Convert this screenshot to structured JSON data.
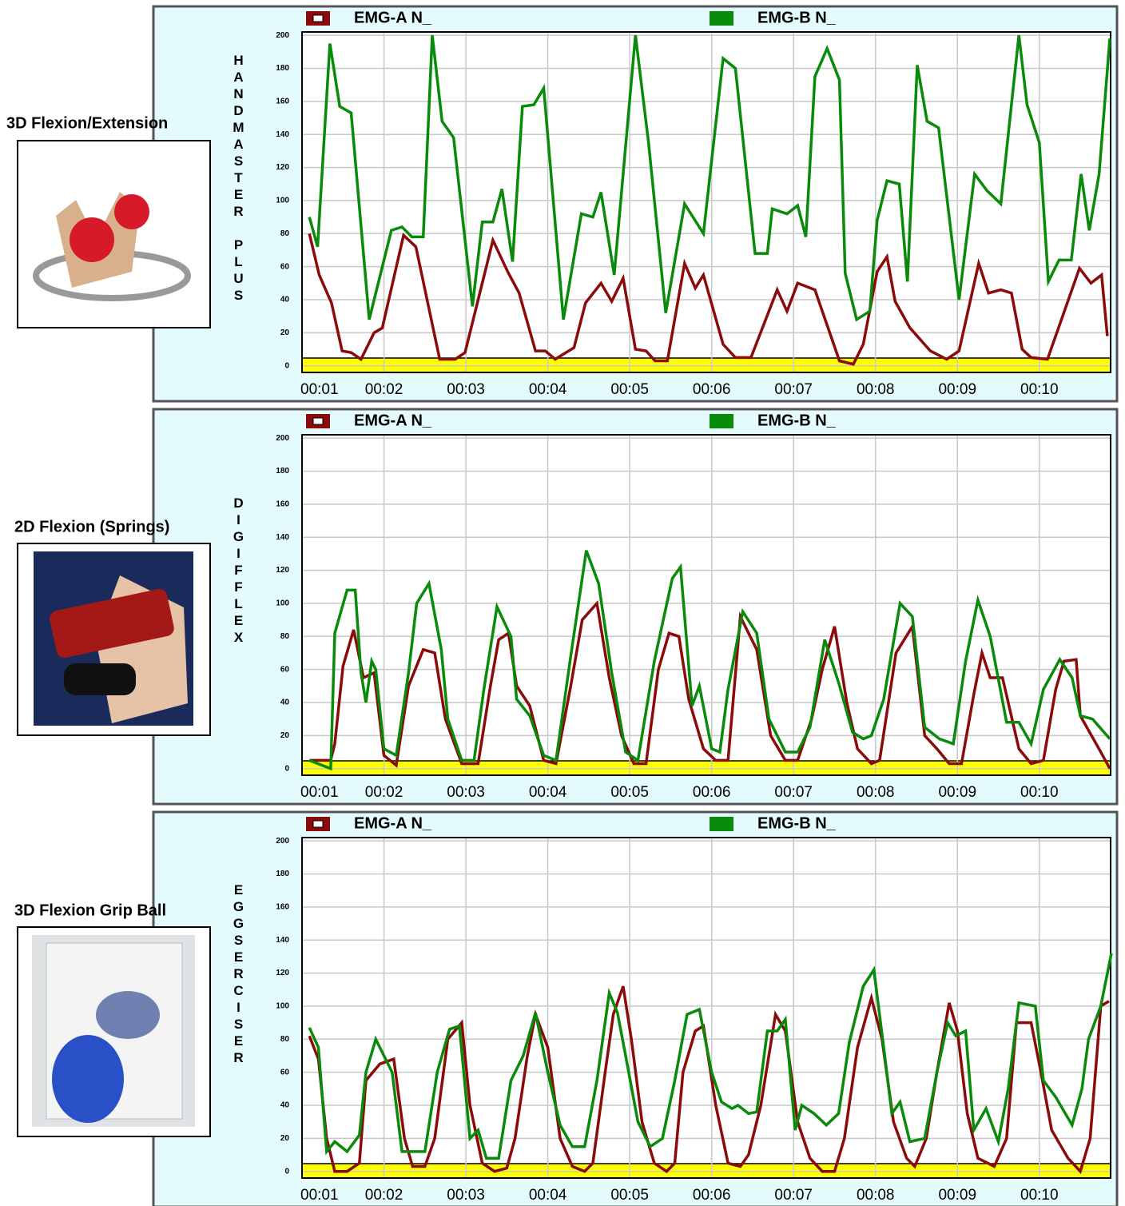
{
  "panels": [
    {
      "caption": "3D Flexion/Extension"
    },
    {
      "caption": "2D Flexion (Springs)"
    },
    {
      "caption": "3D Flexion Grip Ball"
    }
  ],
  "chart_data": [
    {
      "type": "line",
      "ylabel": "HANDMASTER PLUS",
      "xlim": [
        1,
        10.87
      ],
      "ylim": [
        -4,
        202
      ],
      "xticks": [
        {
          "value": 1,
          "label": "00:01"
        },
        {
          "value": 2,
          "label": "00:02"
        },
        {
          "value": 3,
          "label": "00:03"
        },
        {
          "value": 4,
          "label": "00:04"
        },
        {
          "value": 5,
          "label": "00:05"
        },
        {
          "value": 6,
          "label": "00:06"
        },
        {
          "value": 7,
          "label": "00:07"
        },
        {
          "value": 8,
          "label": "00:08"
        },
        {
          "value": 9,
          "label": "00:09"
        },
        {
          "value": 10,
          "label": "00:10"
        }
      ],
      "yticks": [
        0,
        20,
        40,
        60,
        80,
        100,
        120,
        140,
        160,
        180,
        200
      ],
      "grid": true,
      "series": [
        {
          "name": "EMG-A N_",
          "color": "#8b0a0a",
          "x": [
            1.09,
            1.21,
            1.36,
            1.49,
            1.6,
            1.72,
            1.88,
            1.98,
            2.24,
            2.39,
            2.68,
            2.87,
            2.99,
            3.33,
            3.51,
            3.65,
            3.85,
            3.97,
            4.09,
            4.32,
            4.46,
            4.65,
            4.78,
            4.92,
            5.07,
            5.2,
            5.31,
            5.46,
            5.67,
            5.8,
            5.9,
            6.14,
            6.29,
            6.48,
            6.8,
            6.92,
            7.05,
            7.26,
            7.56,
            7.73,
            7.85,
            8.02,
            8.14,
            8.24,
            8.42,
            8.67,
            8.87,
            9.02,
            9.26,
            9.38,
            9.53,
            9.66,
            9.79,
            9.9,
            10.1,
            10.49,
            10.63,
            10.76,
            10.83
          ],
          "values": [
            80,
            55,
            38,
            9,
            8,
            4,
            20,
            23,
            79,
            72,
            4,
            4,
            8,
            76,
            57,
            44,
            9,
            9,
            4,
            11,
            38,
            50,
            39,
            53,
            10,
            9,
            3,
            3,
            62,
            47,
            55,
            13,
            5,
            5,
            46,
            33,
            50,
            46,
            3,
            1,
            13,
            57,
            66,
            39,
            23,
            9,
            4,
            9,
            62,
            44,
            46,
            44,
            10,
            5,
            4,
            59,
            50,
            55,
            18
          ]
        },
        {
          "name": "EMG-B N_",
          "color": "#0a8a0a",
          "x": [
            1.09,
            1.19,
            1.34,
            1.46,
            1.6,
            1.82,
            2.09,
            2.22,
            2.34,
            2.48,
            2.59,
            2.71,
            2.85,
            3.08,
            3.2,
            3.33,
            3.44,
            3.57,
            3.69,
            3.83,
            3.95,
            4.19,
            4.41,
            4.55,
            4.65,
            4.81,
            5.07,
            5.23,
            5.44,
            5.67,
            5.9,
            6.14,
            6.29,
            6.53,
            6.68,
            6.74,
            6.92,
            7.05,
            7.15,
            7.26,
            7.41,
            7.56,
            7.63,
            7.77,
            7.93,
            8.02,
            8.14,
            8.29,
            8.39,
            8.51,
            8.63,
            8.77,
            9.02,
            9.21,
            9.36,
            9.53,
            9.75,
            9.85,
            10,
            10.11,
            10.24,
            10.39,
            10.51,
            10.61,
            10.73,
            10.86
          ],
          "values": [
            90,
            72,
            195,
            157,
            153,
            28,
            82,
            84,
            78,
            78,
            200,
            148,
            138,
            36,
            87,
            87,
            107,
            63,
            157,
            158,
            168,
            28,
            92,
            90,
            105,
            55,
            200,
            135,
            32,
            98,
            80,
            186,
            180,
            68,
            68,
            95,
            92,
            97,
            78,
            175,
            192,
            173,
            56,
            28,
            33,
            88,
            112,
            110,
            51,
            182,
            148,
            144,
            40,
            116,
            106,
            98,
            200,
            158,
            135,
            51,
            64,
            64,
            116,
            82,
            116,
            198
          ]
        }
      ]
    },
    {
      "type": "line",
      "ylabel": "DIGIFFLEX",
      "xlim": [
        1,
        10.87
      ],
      "ylim": [
        -4,
        202
      ],
      "xticks": [
        {
          "value": 1,
          "label": "00:01"
        },
        {
          "value": 2,
          "label": "00:02"
        },
        {
          "value": 3,
          "label": "00:03"
        },
        {
          "value": 4,
          "label": "00:04"
        },
        {
          "value": 5,
          "label": "00:05"
        },
        {
          "value": 6,
          "label": "00:06"
        },
        {
          "value": 7,
          "label": "00:07"
        },
        {
          "value": 8,
          "label": "00:08"
        },
        {
          "value": 9,
          "label": "00:09"
        },
        {
          "value": 10,
          "label": "00:10"
        }
      ],
      "yticks": [
        0,
        20,
        40,
        60,
        80,
        100,
        120,
        140,
        160,
        180,
        200
      ],
      "grid": true,
      "series": [
        {
          "name": "EMG-A N_",
          "color": "#8b0a0a",
          "x": [
            1.09,
            1.35,
            1.4,
            1.5,
            1.63,
            1.75,
            1.88,
            2,
            2.15,
            2.3,
            2.48,
            2.62,
            2.75,
            2.95,
            3.15,
            3.3,
            3.4,
            3.52,
            3.62,
            3.78,
            3.95,
            4.1,
            4.28,
            4.42,
            4.6,
            4.75,
            4.9,
            5.05,
            5.2,
            5.35,
            5.48,
            5.6,
            5.72,
            5.9,
            6.05,
            6.2,
            6.35,
            6.55,
            6.72,
            6.9,
            7.05,
            7.22,
            7.35,
            7.5,
            7.65,
            7.78,
            7.95,
            8.05,
            8.25,
            8.45,
            8.6,
            8.75,
            8.9,
            9.05,
            9.2,
            9.3,
            9.4,
            9.55,
            9.75,
            9.9,
            10.05,
            10.2,
            10.3,
            10.45,
            10.5,
            10.75,
            10.86
          ],
          "values": [
            5,
            5,
            15,
            62,
            84,
            55,
            58,
            8,
            2,
            50,
            72,
            70,
            30,
            3,
            3,
            50,
            78,
            82,
            50,
            38,
            5,
            3,
            50,
            90,
            100,
            55,
            20,
            3,
            3,
            60,
            82,
            80,
            42,
            12,
            5,
            5,
            92,
            72,
            20,
            5,
            5,
            30,
            60,
            86,
            40,
            12,
            3,
            5,
            70,
            86,
            20,
            12,
            3,
            3,
            45,
            70,
            55,
            55,
            12,
            3,
            5,
            48,
            65,
            66,
            32,
            10,
            0
          ]
        },
        {
          "name": "EMG-B N_",
          "color": "#0a8a0a",
          "x": [
            1.09,
            1.35,
            1.4,
            1.55,
            1.65,
            1.72,
            1.78,
            1.85,
            1.9,
            2,
            2.15,
            2.3,
            2.4,
            2.55,
            2.7,
            2.78,
            2.95,
            3.1,
            3.22,
            3.38,
            3.55,
            3.62,
            3.78,
            3.95,
            4.1,
            4.28,
            4.47,
            4.62,
            4.78,
            4.95,
            5.1,
            5.3,
            5.52,
            5.62,
            5.76,
            5.85,
            6,
            6.1,
            6.2,
            6.38,
            6.55,
            6.7,
            6.9,
            7.05,
            7.2,
            7.38,
            7.55,
            7.72,
            7.85,
            7.95,
            8.1,
            8.3,
            8.45,
            8.6,
            8.78,
            8.95,
            9.1,
            9.25,
            9.4,
            9.6,
            9.75,
            9.9,
            10.05,
            10.25,
            10.4,
            10.5,
            10.65,
            10.86
          ],
          "values": [
            5,
            0,
            82,
            108,
            108,
            58,
            40,
            65,
            60,
            12,
            8,
            58,
            100,
            112,
            72,
            30,
            5,
            5,
            48,
            98,
            80,
            42,
            32,
            8,
            5,
            68,
            132,
            112,
            58,
            10,
            5,
            65,
            115,
            122,
            38,
            50,
            12,
            10,
            48,
            95,
            82,
            30,
            10,
            10,
            25,
            78,
            52,
            22,
            18,
            20,
            42,
            100,
            92,
            25,
            18,
            15,
            65,
            102,
            80,
            28,
            28,
            15,
            48,
            66,
            55,
            32,
            30,
            18
          ]
        }
      ]
    },
    {
      "type": "line",
      "ylabel": "EGGSERCISER",
      "xlim": [
        1,
        10.87
      ],
      "ylim": [
        -4,
        202
      ],
      "xticks": [
        {
          "value": 1,
          "label": "00:01"
        },
        {
          "value": 2,
          "label": "00:02"
        },
        {
          "value": 3,
          "label": "00:03"
        },
        {
          "value": 4,
          "label": "00:04"
        },
        {
          "value": 5,
          "label": "00:05"
        },
        {
          "value": 6,
          "label": "00:06"
        },
        {
          "value": 7,
          "label": "00:07"
        },
        {
          "value": 8,
          "label": "00:08"
        },
        {
          "value": 9,
          "label": "00:09"
        },
        {
          "value": 10,
          "label": "00:10"
        }
      ],
      "yticks": [
        0,
        20,
        40,
        60,
        80,
        100,
        120,
        140,
        160,
        180,
        200
      ],
      "grid": true,
      "series": [
        {
          "name": "EMG-A N_",
          "color": "#8b0a0a",
          "x": [
            1.09,
            1.2,
            1.3,
            1.4,
            1.55,
            1.7,
            1.78,
            1.95,
            2.12,
            2.25,
            2.35,
            2.5,
            2.62,
            2.78,
            2.95,
            3.05,
            3.2,
            3.35,
            3.5,
            3.6,
            3.75,
            3.85,
            4,
            4.15,
            4.3,
            4.45,
            4.55,
            4.7,
            4.8,
            4.92,
            5.02,
            5.15,
            5.3,
            5.45,
            5.55,
            5.65,
            5.8,
            5.9,
            6.05,
            6.2,
            6.35,
            6.45,
            6.6,
            6.78,
            6.9,
            7.05,
            7.2,
            7.35,
            7.5,
            7.62,
            7.78,
            7.95,
            8.08,
            8.22,
            8.38,
            8.48,
            8.62,
            8.75,
            8.9,
            9,
            9.12,
            9.25,
            9.45,
            9.6,
            9.72,
            9.9,
            10.02,
            10.15,
            10.35,
            10.5,
            10.62,
            10.75,
            10.85
          ],
          "values": [
            82,
            68,
            20,
            0,
            0,
            5,
            55,
            65,
            68,
            20,
            3,
            3,
            20,
            80,
            90,
            40,
            5,
            0,
            2,
            20,
            70,
            95,
            75,
            20,
            3,
            0,
            5,
            60,
            95,
            112,
            80,
            30,
            5,
            0,
            5,
            60,
            85,
            88,
            40,
            5,
            3,
            10,
            40,
            95,
            85,
            30,
            8,
            0,
            0,
            20,
            75,
            105,
            80,
            30,
            8,
            3,
            20,
            60,
            102,
            85,
            35,
            8,
            3,
            20,
            90,
            90,
            60,
            25,
            8,
            0,
            20,
            100,
            103
          ]
        },
        {
          "name": "EMG-B N_",
          "color": "#0a8a0a",
          "x": [
            1.09,
            1.2,
            1.3,
            1.4,
            1.55,
            1.7,
            1.78,
            1.9,
            2.1,
            2.22,
            2.35,
            2.5,
            2.65,
            2.8,
            2.92,
            3.05,
            3.15,
            3.25,
            3.4,
            3.55,
            3.7,
            3.85,
            4,
            4.15,
            4.3,
            4.45,
            4.6,
            4.75,
            4.85,
            4.95,
            5.1,
            5.25,
            5.4,
            5.55,
            5.7,
            5.85,
            6,
            6.12,
            6.25,
            6.32,
            6.45,
            6.55,
            6.68,
            6.8,
            6.9,
            7.02,
            7.1,
            7.25,
            7.4,
            7.55,
            7.68,
            7.85,
            7.98,
            8.1,
            8.2,
            8.3,
            8.42,
            8.6,
            8.75,
            8.88,
            8.98,
            9.1,
            9.2,
            9.35,
            9.5,
            9.62,
            9.75,
            9.95,
            10.05,
            10.2,
            10.4,
            10.52,
            10.6,
            10.75,
            10.88
          ],
          "values": [
            87,
            75,
            12,
            18,
            12,
            22,
            60,
            80,
            60,
            12,
            12,
            12,
            60,
            86,
            88,
            20,
            25,
            8,
            8,
            55,
            70,
            96,
            60,
            28,
            15,
            15,
            55,
            108,
            96,
            70,
            30,
            15,
            20,
            55,
            95,
            98,
            60,
            42,
            38,
            40,
            35,
            36,
            85,
            85,
            92,
            25,
            40,
            35,
            28,
            35,
            78,
            112,
            122,
            75,
            35,
            42,
            18,
            20,
            60,
            90,
            82,
            85,
            25,
            38,
            18,
            50,
            102,
            100,
            55,
            45,
            28,
            50,
            80,
            100,
            132
          ]
        }
      ]
    }
  ]
}
